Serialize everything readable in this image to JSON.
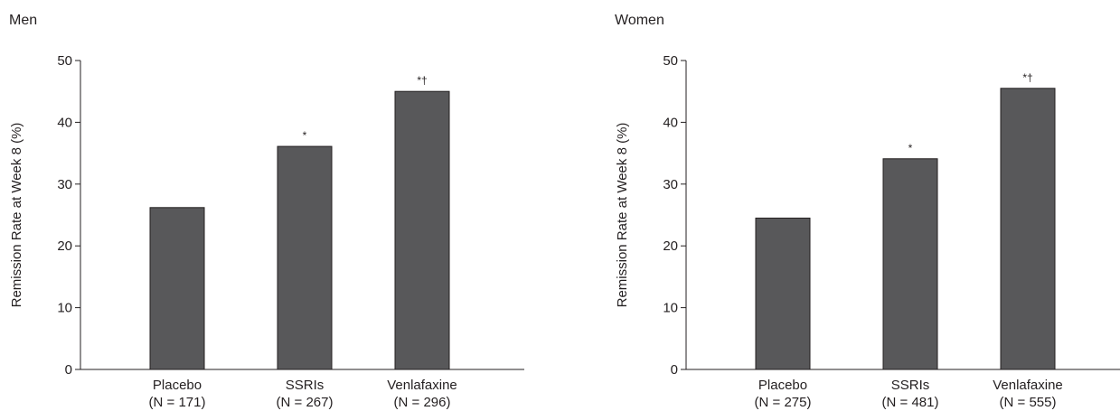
{
  "chart_data": [
    {
      "type": "bar",
      "title": "Men",
      "ylabel": "Remission Rate at Week 8 (%)",
      "ylim": [
        0,
        50
      ],
      "yticks": [
        0,
        10,
        20,
        30,
        40,
        50
      ],
      "categories": [
        "Placebo",
        "SSRIs",
        "Venlafaxine"
      ],
      "category_n": [
        "(N = 171)",
        "(N = 267)",
        "(N = 296)"
      ],
      "values": [
        26.2,
        36.1,
        45.0
      ],
      "annotations": [
        "",
        "*",
        "*†"
      ],
      "bar_color": "#58585a"
    },
    {
      "type": "bar",
      "title": "Women",
      "ylabel": "Remission Rate at Week 8 (%)",
      "ylim": [
        0,
        50
      ],
      "yticks": [
        0,
        10,
        20,
        30,
        40,
        50
      ],
      "categories": [
        "Placebo",
        "SSRIs",
        "Venlafaxine"
      ],
      "category_n": [
        "(N = 275)",
        "(N = 481)",
        "(N = 555)"
      ],
      "values": [
        24.5,
        34.1,
        45.5
      ],
      "annotations": [
        "",
        "*",
        "*†"
      ],
      "bar_color": "#58585a"
    }
  ]
}
